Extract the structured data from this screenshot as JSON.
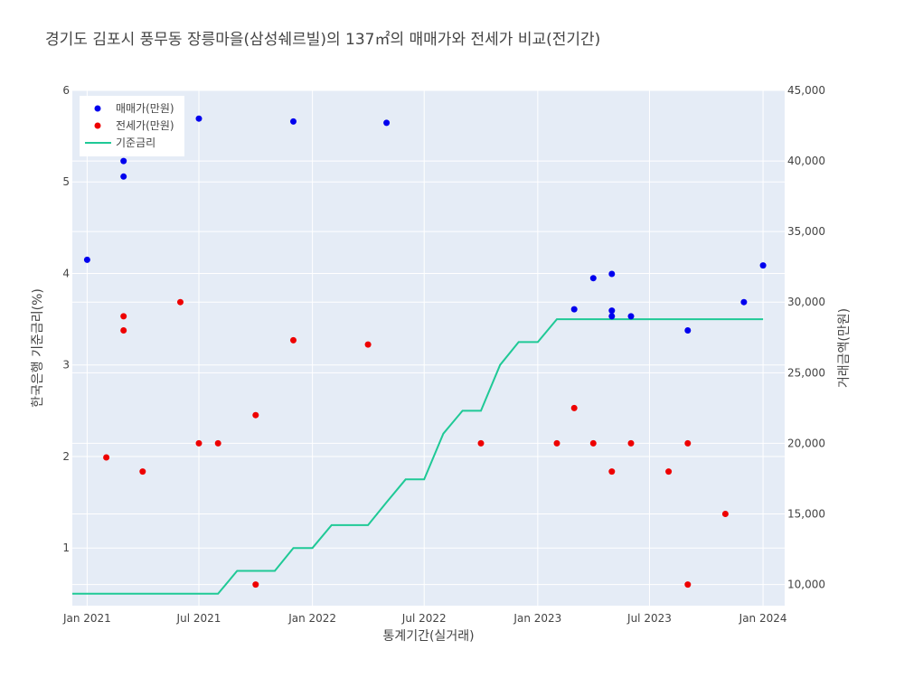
{
  "chart_data": {
    "type": "scatter",
    "title": "경기도 김포시 풍무동 장릉마을(삼성쉐르빌)의 137㎡의 매매가와 전세가 비교(전기간)",
    "xlabel": "통계기간(실거래)",
    "ylabel_left": "한국은행 기준금리(%)",
    "ylabel_right": "거래금액(만원)",
    "x_range": [
      "2020-12-08",
      "2024-02-05"
    ],
    "y_left_range": [
      0.37,
      6.0
    ],
    "y_right_range": [
      8500,
      45000
    ],
    "x_ticks": [
      {
        "date": "2021-01-01",
        "label": "Jan 2021"
      },
      {
        "date": "2021-07-01",
        "label": "Jul 2021"
      },
      {
        "date": "2022-01-01",
        "label": "Jan 2022"
      },
      {
        "date": "2022-07-01",
        "label": "Jul 2022"
      },
      {
        "date": "2023-01-01",
        "label": "Jan 2023"
      },
      {
        "date": "2023-07-01",
        "label": "Jul 2023"
      },
      {
        "date": "2024-01-01",
        "label": "Jan 2024"
      }
    ],
    "y_left_ticks": [
      {
        "value": 1,
        "label": "1"
      },
      {
        "value": 2,
        "label": "2"
      },
      {
        "value": 3,
        "label": "3"
      },
      {
        "value": 4,
        "label": "4"
      },
      {
        "value": 5,
        "label": "5"
      },
      {
        "value": 6,
        "label": "6"
      }
    ],
    "y_right_ticks": [
      {
        "value": 10000,
        "label": "10,000"
      },
      {
        "value": 15000,
        "label": "15,000"
      },
      {
        "value": 20000,
        "label": "20,000"
      },
      {
        "value": 25000,
        "label": "25,000"
      },
      {
        "value": 30000,
        "label": "30,000"
      },
      {
        "value": 35000,
        "label": "35,000"
      },
      {
        "value": 40000,
        "label": "40,000"
      },
      {
        "value": 45000,
        "label": "45,000"
      }
    ],
    "legend_position": "top-left",
    "series": [
      {
        "name": "매매가(만원)",
        "kind": "markers",
        "axis": "right",
        "color": "#0000ee",
        "points": [
          {
            "x": "2021-01-01",
            "y": 33000
          },
          {
            "x": "2021-03-01",
            "y": 40000
          },
          {
            "x": "2021-03-01",
            "y": 38900
          },
          {
            "x": "2021-07-01",
            "y": 43000
          },
          {
            "x": "2021-12-01",
            "y": 42800
          },
          {
            "x": "2022-05-01",
            "y": 42700
          },
          {
            "x": "2023-03-01",
            "y": 29500
          },
          {
            "x": "2023-04-01",
            "y": 31700
          },
          {
            "x": "2023-05-01",
            "y": 32000
          },
          {
            "x": "2023-05-01",
            "y": 29400
          },
          {
            "x": "2023-05-01",
            "y": 29000
          },
          {
            "x": "2023-06-01",
            "y": 29000
          },
          {
            "x": "2023-09-01",
            "y": 28000
          },
          {
            "x": "2023-12-01",
            "y": 30000
          },
          {
            "x": "2024-01-01",
            "y": 32600
          }
        ]
      },
      {
        "name": "전세가(만원)",
        "kind": "markers",
        "axis": "right",
        "color": "#ee0000",
        "points": [
          {
            "x": "2021-02-01",
            "y": 19000
          },
          {
            "x": "2021-03-01",
            "y": 29000
          },
          {
            "x": "2021-03-01",
            "y": 28000
          },
          {
            "x": "2021-04-01",
            "y": 18000
          },
          {
            "x": "2021-06-01",
            "y": 30000
          },
          {
            "x": "2021-07-01",
            "y": 20000
          },
          {
            "x": "2021-08-01",
            "y": 20000
          },
          {
            "x": "2021-10-01",
            "y": 22000
          },
          {
            "x": "2021-10-01",
            "y": 10000
          },
          {
            "x": "2021-12-01",
            "y": 27300
          },
          {
            "x": "2022-04-01",
            "y": 27000
          },
          {
            "x": "2022-10-01",
            "y": 20000
          },
          {
            "x": "2023-02-01",
            "y": 20000
          },
          {
            "x": "2023-03-01",
            "y": 22500
          },
          {
            "x": "2023-04-01",
            "y": 20000
          },
          {
            "x": "2023-05-01",
            "y": 18000
          },
          {
            "x": "2023-06-01",
            "y": 20000
          },
          {
            "x": "2023-08-01",
            "y": 18000
          },
          {
            "x": "2023-09-01",
            "y": 20000
          },
          {
            "x": "2023-09-01",
            "y": 10000
          },
          {
            "x": "2023-11-01",
            "y": 15000
          }
        ]
      },
      {
        "name": "기준금리",
        "kind": "line",
        "axis": "left",
        "color": "#1fc996",
        "points": [
          {
            "x": "2020-12-08",
            "y": 0.5
          },
          {
            "x": "2021-08-01",
            "y": 0.5
          },
          {
            "x": "2021-09-01",
            "y": 0.75
          },
          {
            "x": "2021-11-01",
            "y": 0.75
          },
          {
            "x": "2021-12-01",
            "y": 1.0
          },
          {
            "x": "2022-01-01",
            "y": 1.0
          },
          {
            "x": "2022-02-01",
            "y": 1.25
          },
          {
            "x": "2022-04-01",
            "y": 1.25
          },
          {
            "x": "2022-05-01",
            "y": 1.5
          },
          {
            "x": "2022-06-01",
            "y": 1.75
          },
          {
            "x": "2022-07-01",
            "y": 1.75
          },
          {
            "x": "2022-08-01",
            "y": 2.25
          },
          {
            "x": "2022-09-01",
            "y": 2.5
          },
          {
            "x": "2022-10-01",
            "y": 2.5
          },
          {
            "x": "2022-11-01",
            "y": 3.0
          },
          {
            "x": "2022-12-01",
            "y": 3.25
          },
          {
            "x": "2023-01-01",
            "y": 3.25
          },
          {
            "x": "2023-02-01",
            "y": 3.5
          },
          {
            "x": "2024-01-01",
            "y": 3.5
          }
        ]
      }
    ]
  }
}
